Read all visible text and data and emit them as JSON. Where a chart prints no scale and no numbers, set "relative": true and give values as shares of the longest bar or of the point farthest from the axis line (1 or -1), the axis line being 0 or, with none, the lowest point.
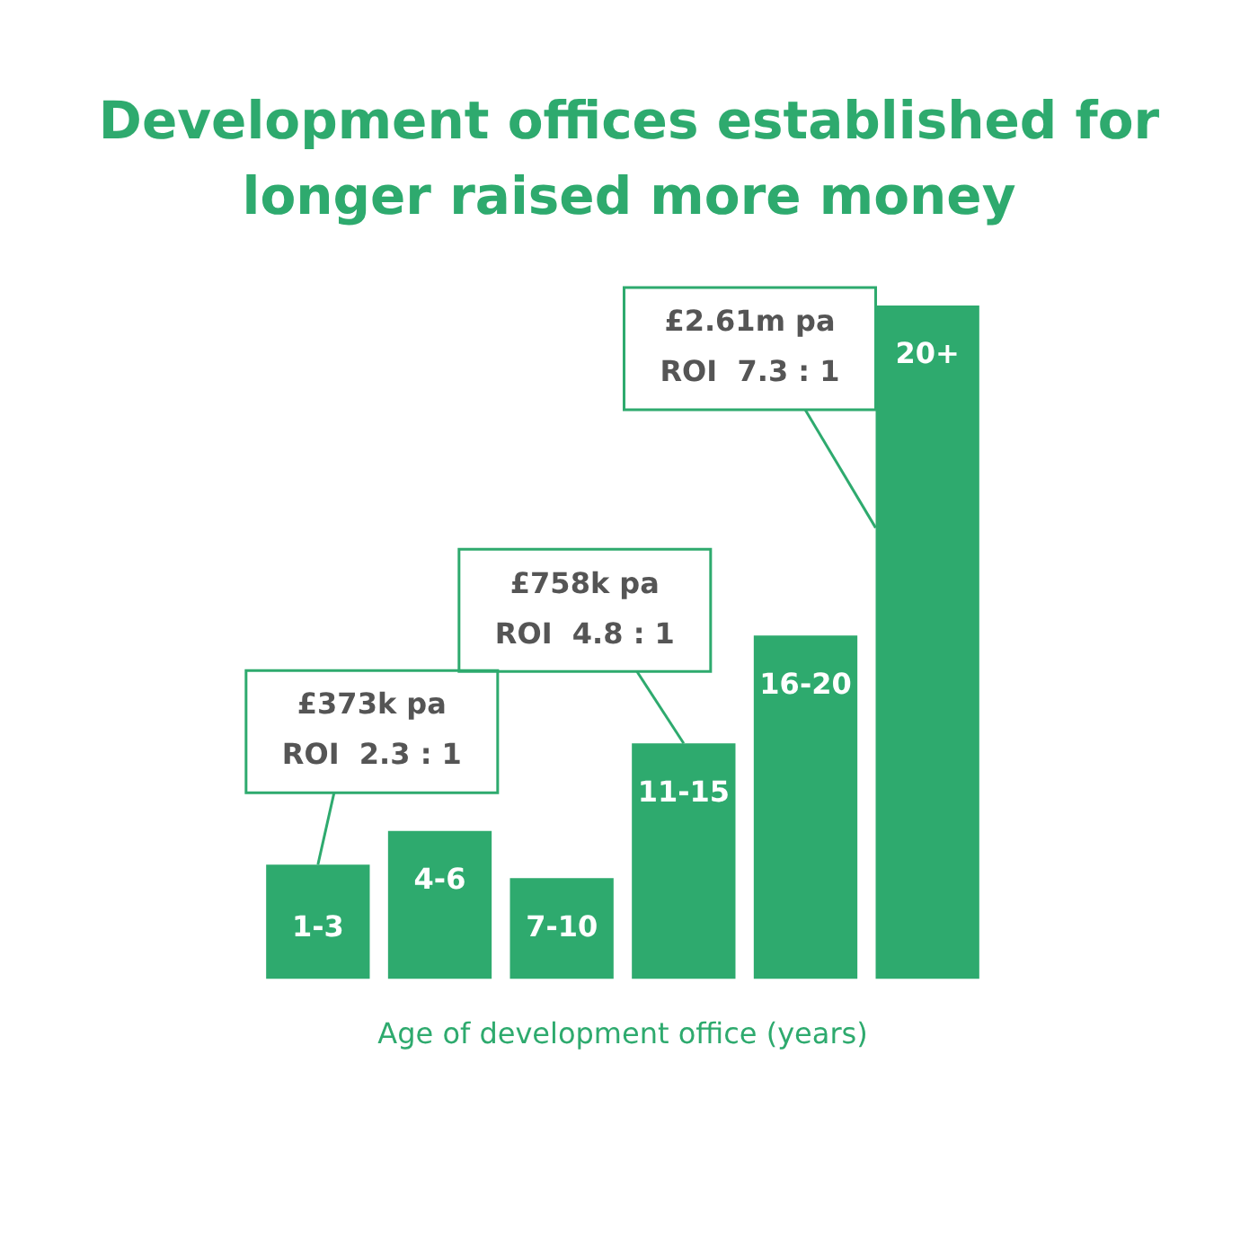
{
  "chart_data": {
    "type": "bar",
    "title": "Development offices established for longer raised more money",
    "xlabel": "Age of development office (years)",
    "categories": [
      "1-3",
      "4-6",
      "7-10",
      "11-15",
      "16-20",
      "20+"
    ],
    "values": [
      0.17,
      0.22,
      0.15,
      0.35,
      0.51,
      1
    ],
    "color": "#2eaa6e",
    "relative": true,
    "grid": false,
    "legend": false,
    "annotations": [
      {
        "text": "£373k pa\nROI  2.3 : 1",
        "x": "1-3",
        "y": 0.17
      },
      {
        "text": "£758k pa\nROI  4.8 : 1",
        "x": "11-15",
        "y": 0.35
      },
      "£2.61m pa\nROI  7.3 : 1"
    ]
  }
}
